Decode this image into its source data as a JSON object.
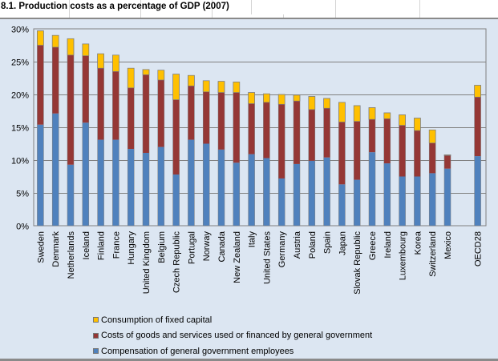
{
  "sheet": {
    "title": "8.1. Production costs as a percentage of GDP (2007)"
  },
  "colors": {
    "compensation": "#4f81bd",
    "goods_services": "#953735",
    "fixed_capital": "#ffc000",
    "background": "#dce6f2",
    "gridline": "#808080"
  },
  "chart_data": {
    "type": "bar",
    "stacked": true,
    "title": "Production costs as a percentage of GDP (2007)",
    "xlabel": "",
    "ylabel": "",
    "ylim": [
      0,
      30
    ],
    "yticks": [
      "0%",
      "5%",
      "10%",
      "15%",
      "20%",
      "25%",
      "30%"
    ],
    "grid": true,
    "legend_position": "bottom",
    "categories": [
      "Sweden",
      "Denmark",
      "Netherlands",
      "Iceland",
      "Finland",
      "France",
      "Hungary",
      "United Kingdom",
      "Belgium",
      "Czech Republic",
      "Portugal",
      "Norway",
      "Canada",
      "New Zealand",
      "Italy",
      "United States",
      "Germany",
      "Austria",
      "Poland",
      "Spain",
      "Japan",
      "Slovak Republic",
      "Greece",
      "Ireland",
      "Luxembourg",
      "Korea",
      "Switzerland",
      "Mexico",
      "OECD28"
    ],
    "series": [
      {
        "name": "Compensation of general government employees",
        "color_key": "compensation",
        "values": [
          15.4,
          17.1,
          9.3,
          15.7,
          13.1,
          13.1,
          11.7,
          11.1,
          12.0,
          7.8,
          13.1,
          12.5,
          11.6,
          9.6,
          10.9,
          10.3,
          7.2,
          9.4,
          9.9,
          10.4,
          6.3,
          7.0,
          11.2,
          9.5,
          7.5,
          7.5,
          8.0,
          8.7,
          10.6
        ]
      },
      {
        "name": "Costs of goods and services used or financed by general government",
        "color_key": "goods_services",
        "values": [
          12.1,
          10.1,
          16.7,
          10.2,
          10.9,
          10.4,
          9.3,
          11.9,
          10.2,
          11.4,
          8.2,
          7.9,
          8.7,
          10.7,
          7.7,
          8.5,
          11.3,
          9.6,
          7.8,
          7.5,
          9.5,
          8.9,
          5.0,
          6.8,
          7.8,
          7.0,
          4.6,
          2.0,
          9.0
        ]
      },
      {
        "name": "Consumption of fixed capital",
        "color_key": "fixed_capital",
        "values": [
          2.2,
          1.8,
          2.5,
          1.8,
          2.2,
          2.5,
          3.0,
          0.8,
          1.5,
          3.9,
          1.6,
          1.7,
          1.7,
          1.6,
          1.7,
          1.3,
          1.5,
          0.9,
          2.0,
          1.5,
          3.0,
          2.4,
          1.8,
          0.9,
          1.6,
          1.9,
          2.0,
          0.1,
          1.8
        ]
      }
    ],
    "legend": [
      "Consumption of fixed capital",
      "Costs of goods and services used or financed by general government",
      "Compensation of general government employees"
    ]
  }
}
